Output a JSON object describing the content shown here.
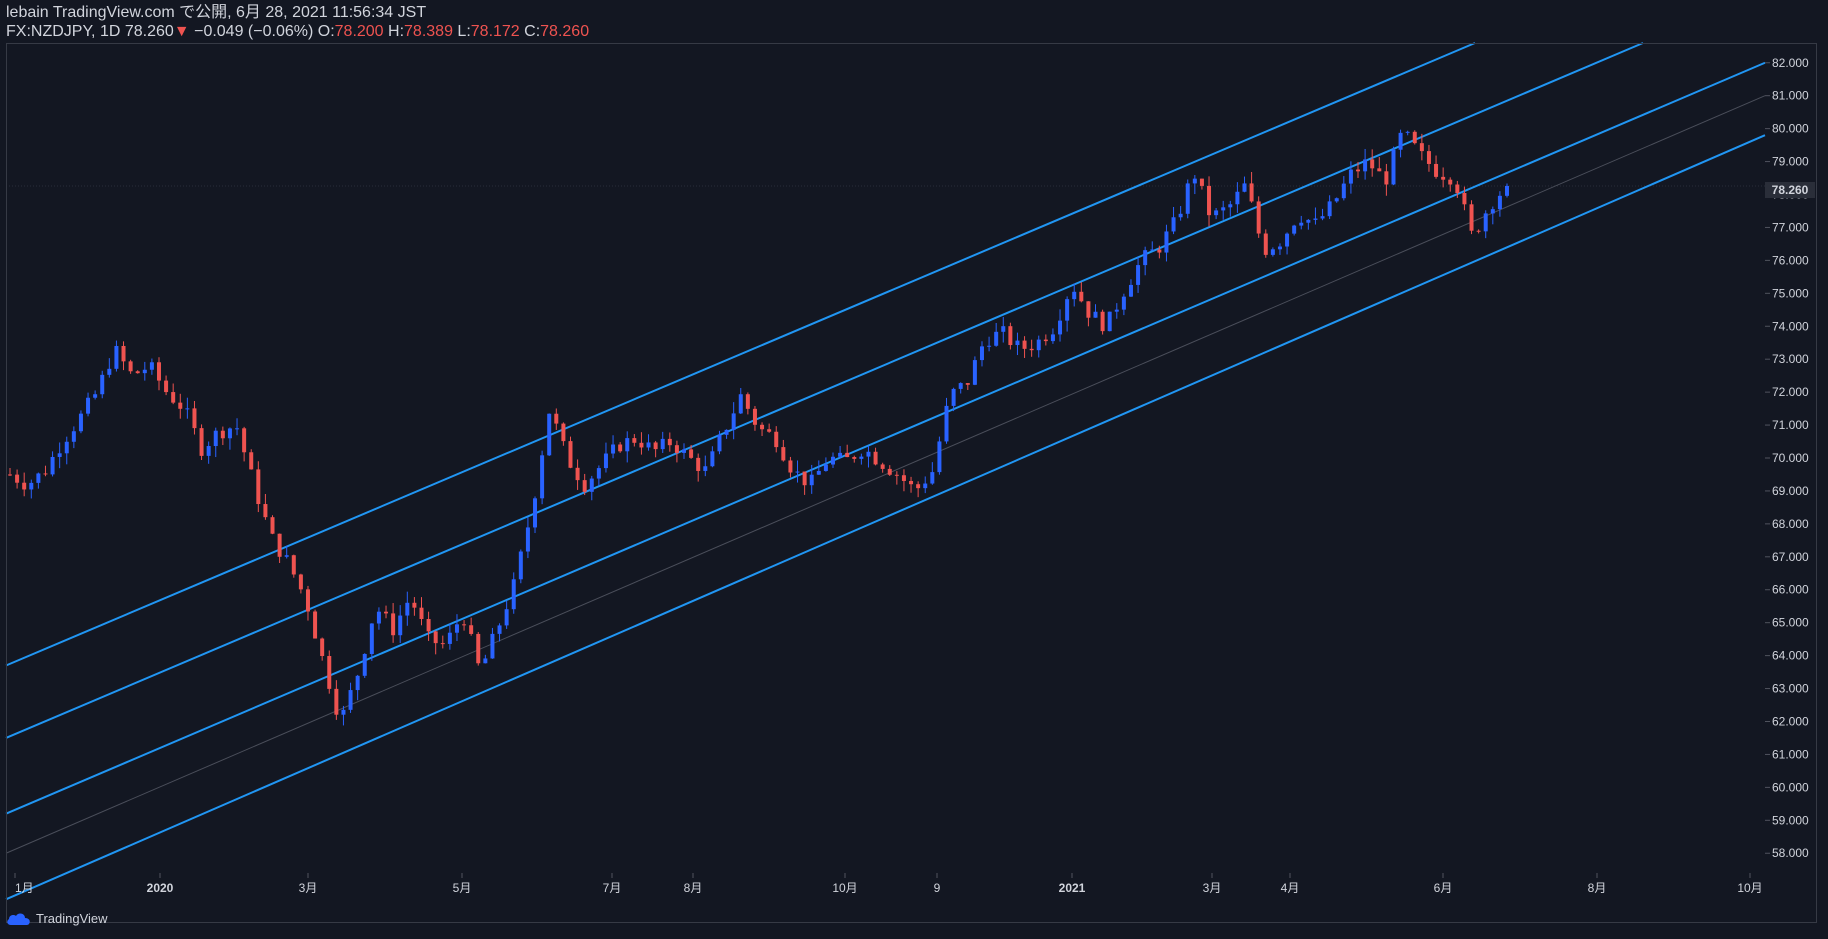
{
  "header": {
    "line1": "lebain TradingView.com で公開, 6月 28, 2021 11:56:34 JST",
    "symbol": "FX:NZDJPY, 1D",
    "last": "78.260",
    "arrow": "▼",
    "change": "−0.049 (−0.06%)",
    "o_label": "O:",
    "o_val": "78.200",
    "h_label": "H:",
    "h_val": "78.389",
    "l_label": "L:",
    "l_val": "78.172",
    "c_label": "C:",
    "c_val": "78.260"
  },
  "price_tag": "78.260",
  "footer": {
    "brand": "TradingView"
  },
  "colors": {
    "background": "#131722",
    "up": "#2962ff",
    "down": "#ef5350",
    "channel": "#2196f3",
    "axis_text": "#d1d4dc"
  },
  "chart_data": {
    "type": "candlestick",
    "symbol": "FX:NZDJPY",
    "interval": "1D",
    "ylim": [
      57.4,
      82.6
    ],
    "y_ticks": [
      58,
      59,
      60,
      61,
      62,
      63,
      64,
      65,
      66,
      67,
      68,
      69,
      70,
      71,
      72,
      73,
      74,
      75,
      76,
      77,
      78,
      79,
      80,
      81,
      82
    ],
    "y_tick_labels": [
      "58.000",
      "59.000",
      "60.000",
      "61.000",
      "62.000",
      "63.000",
      "64.000",
      "65.000",
      "66.000",
      "67.000",
      "68.000",
      "69.000",
      "70.000",
      "71.000",
      "72.000",
      "73.000",
      "74.000",
      "75.000",
      "76.000",
      "77.000",
      "78.000",
      "79.000",
      "80.000",
      "81.000",
      "82.000"
    ],
    "x_labels": [
      "1月",
      "2020",
      "3月",
      "5月",
      "7月",
      "8月",
      "10月",
      "9",
      "2021",
      "3月",
      "4月",
      "6月",
      "8月",
      "10月"
    ],
    "x_label_bold": [
      false,
      true,
      false,
      false,
      false,
      false,
      false,
      false,
      true,
      false,
      false,
      false,
      false,
      false
    ],
    "path": [
      69.5,
      69.2,
      69.6,
      70.5,
      71.2,
      72.0,
      73.3,
      72.5,
      72.8,
      72.0,
      71.5,
      70.3,
      70.8,
      71.0,
      69.2,
      67.6,
      66.8,
      65.7,
      63.8,
      62.0,
      63.5,
      65.5,
      64.8,
      65.8,
      64.5,
      64.3,
      65.3,
      63.5,
      64.8,
      66.2,
      68.5,
      71.5,
      70.0,
      69.2,
      69.8,
      70.4,
      70.6,
      70.2,
      70.5,
      70.0,
      69.6,
      70.8,
      71.9,
      70.9,
      70.6,
      69.6,
      69.2,
      70.0,
      69.9,
      70.3,
      69.9,
      69.5,
      69.0,
      69.6,
      71.9,
      72.3,
      73.6,
      73.8,
      73.3,
      73.5,
      74.0,
      75.3,
      74.4,
      74.0,
      75.1,
      76.0,
      76.4,
      77.2,
      78.7,
      77.3,
      77.6,
      78.3,
      76.3,
      76.6,
      77.4,
      77.1,
      77.7,
      78.6,
      79.0,
      78.4,
      79.9,
      79.2,
      78.7,
      78.5,
      76.7,
      77.7,
      78.26
    ],
    "last_close": 78.26,
    "channel_lines": [
      {
        "from": [
          "2019-01",
          63.7
        ],
        "to": [
          "2021-06",
          82.6
        ]
      },
      {
        "from": [
          "2019-01",
          61.5
        ],
        "to": [
          "2021-07",
          82.6
        ]
      },
      {
        "from": [
          "2019-01",
          59.2
        ],
        "to": [
          "2021-10",
          82.0
        ]
      },
      {
        "from": [
          "2019-01",
          56.6
        ],
        "to": [
          "2021-10",
          79.8
        ]
      }
    ],
    "median_line": {
      "from": [
        "2019-01",
        58.0
      ],
      "to": [
        "2021-10",
        81.0
      ]
    },
    "last_price_line": 78.26
  }
}
